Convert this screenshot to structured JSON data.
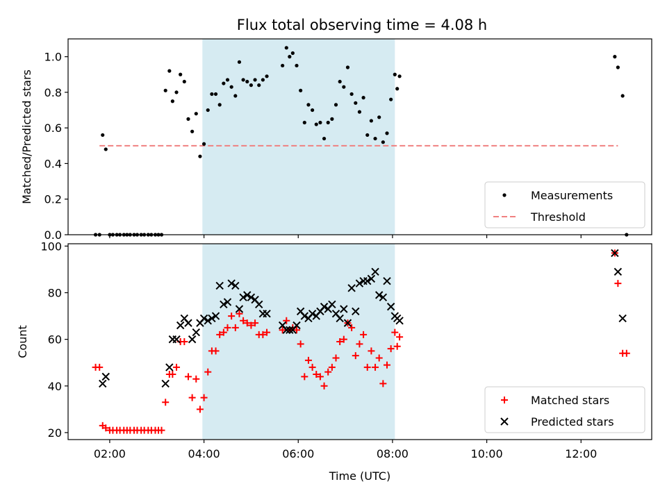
{
  "figure": {
    "title": "Flux total observing time = 4.08 h"
  },
  "colors": {
    "shade": "#add8e6",
    "measurement": "#000000",
    "threshold": "#f08080",
    "matched": "#ff0000",
    "predicted": "#000000"
  },
  "chart_data": [
    {
      "type": "scatter",
      "ylabel": "Matched/Predicted stars",
      "xlim": [
        "01:07",
        "13:30"
      ],
      "ylim": [
        0,
        1.1
      ],
      "yticks": [
        0.0,
        0.2,
        0.4,
        0.6,
        0.8,
        1.0
      ],
      "ytick_labels": [
        "0.0",
        "0.2",
        "0.4",
        "0.6",
        "0.8",
        "1.0"
      ],
      "shaded_interval": [
        "03:58",
        "08:03"
      ],
      "legend": {
        "position": "lower-right",
        "entries": [
          "Measurements",
          "Threshold"
        ]
      },
      "threshold": {
        "name": "Threshold",
        "value": 0.5,
        "x": [
          "01:47",
          "12:47"
        ],
        "style": "dashed"
      },
      "series": [
        {
          "name": "Measurements",
          "marker": "dot",
          "points": [
            [
              "01:42",
              0.0
            ],
            [
              "01:47",
              0.0
            ],
            [
              "01:51",
              0.56
            ],
            [
              "01:55",
              0.48
            ],
            [
              "02:00",
              0.0
            ],
            [
              "02:04",
              0.0
            ],
            [
              "02:09",
              0.0
            ],
            [
              "02:13",
              0.0
            ],
            [
              "02:18",
              0.0
            ],
            [
              "02:22",
              0.0
            ],
            [
              "02:26",
              0.0
            ],
            [
              "02:31",
              0.0
            ],
            [
              "02:35",
              0.0
            ],
            [
              "02:40",
              0.0
            ],
            [
              "02:44",
              0.0
            ],
            [
              "02:49",
              0.0
            ],
            [
              "02:53",
              0.0
            ],
            [
              "02:58",
              0.0
            ],
            [
              "03:02",
              0.0
            ],
            [
              "03:06",
              0.0
            ],
            [
              "03:11",
              0.81
            ],
            [
              "03:16",
              0.92
            ],
            [
              "03:20",
              0.75
            ],
            [
              "03:25",
              0.8
            ],
            [
              "03:30",
              0.9
            ],
            [
              "03:35",
              0.86
            ],
            [
              "03:40",
              0.65
            ],
            [
              "03:45",
              0.58
            ],
            [
              "03:50",
              0.68
            ],
            [
              "03:55",
              0.44
            ],
            [
              "04:00",
              0.51
            ],
            [
              "04:05",
              0.7
            ],
            [
              "04:10",
              0.79
            ],
            [
              "04:15",
              0.79
            ],
            [
              "04:20",
              0.73
            ],
            [
              "04:25",
              0.85
            ],
            [
              "04:30",
              0.87
            ],
            [
              "04:35",
              0.83
            ],
            [
              "04:40",
              0.78
            ],
            [
              "04:45",
              0.97
            ],
            [
              "04:50",
              0.87
            ],
            [
              "04:55",
              0.86
            ],
            [
              "05:00",
              0.84
            ],
            [
              "05:05",
              0.87
            ],
            [
              "05:10",
              0.84
            ],
            [
              "05:15",
              0.87
            ],
            [
              "05:20",
              0.89
            ],
            [
              "05:40",
              0.95
            ],
            [
              "05:45",
              1.05
            ],
            [
              "05:49",
              1.0
            ],
            [
              "05:53",
              1.02
            ],
            [
              "05:58",
              0.95
            ],
            [
              "06:03",
              0.81
            ],
            [
              "06:08",
              0.63
            ],
            [
              "06:13",
              0.73
            ],
            [
              "06:18",
              0.7
            ],
            [
              "06:23",
              0.62
            ],
            [
              "06:28",
              0.63
            ],
            [
              "06:33",
              0.54
            ],
            [
              "06:38",
              0.63
            ],
            [
              "06:43",
              0.65
            ],
            [
              "06:48",
              0.73
            ],
            [
              "06:53",
              0.86
            ],
            [
              "06:58",
              0.83
            ],
            [
              "07:03",
              0.94
            ],
            [
              "07:08",
              0.79
            ],
            [
              "07:13",
              0.74
            ],
            [
              "07:18",
              0.69
            ],
            [
              "07:23",
              0.77
            ],
            [
              "07:28",
              0.56
            ],
            [
              "07:33",
              0.64
            ],
            [
              "07:38",
              0.54
            ],
            [
              "07:43",
              0.66
            ],
            [
              "07:48",
              0.52
            ],
            [
              "07:53",
              0.57
            ],
            [
              "07:58",
              0.76
            ],
            [
              "08:03",
              0.9
            ],
            [
              "08:06",
              0.82
            ],
            [
              "08:09",
              0.89
            ],
            [
              "12:43",
              1.0
            ],
            [
              "12:47",
              0.94
            ],
            [
              "12:53",
              0.78
            ],
            [
              "12:58",
              0.0
            ]
          ]
        }
      ]
    },
    {
      "type": "scatter",
      "xlabel": "Time (UTC)",
      "ylabel": "Count",
      "xlim": [
        "01:07",
        "13:30"
      ],
      "ylim": [
        17,
        101
      ],
      "xticks": [
        "02:00",
        "04:00",
        "06:00",
        "08:00",
        "10:00",
        "12:00"
      ],
      "yticks": [
        20,
        40,
        60,
        80,
        100
      ],
      "ytick_labels": [
        "20",
        "40",
        "60",
        "80",
        "100"
      ],
      "shaded_interval": [
        "03:58",
        "08:03"
      ],
      "legend": {
        "position": "lower-right",
        "entries": [
          "Matched stars",
          "Predicted stars"
        ]
      },
      "series": [
        {
          "name": "Matched stars",
          "marker": "plus",
          "points": [
            [
              "01:42",
              48
            ],
            [
              "01:47",
              48
            ],
            [
              "01:51",
              23
            ],
            [
              "01:55",
              22
            ],
            [
              "02:00",
              21
            ],
            [
              "02:04",
              21
            ],
            [
              "02:09",
              21
            ],
            [
              "02:13",
              21
            ],
            [
              "02:18",
              21
            ],
            [
              "02:22",
              21
            ],
            [
              "02:26",
              21
            ],
            [
              "02:31",
              21
            ],
            [
              "02:35",
              21
            ],
            [
              "02:40",
              21
            ],
            [
              "02:44",
              21
            ],
            [
              "02:49",
              21
            ],
            [
              "02:53",
              21
            ],
            [
              "02:58",
              21
            ],
            [
              "03:02",
              21
            ],
            [
              "03:06",
              21
            ],
            [
              "03:11",
              33
            ],
            [
              "03:16",
              45
            ],
            [
              "03:20",
              45
            ],
            [
              "03:25",
              48
            ],
            [
              "03:30",
              59
            ],
            [
              "03:35",
              59
            ],
            [
              "03:40",
              44
            ],
            [
              "03:45",
              35
            ],
            [
              "03:50",
              43
            ],
            [
              "03:55",
              30
            ],
            [
              "04:00",
              35
            ],
            [
              "04:05",
              46
            ],
            [
              "04:10",
              55
            ],
            [
              "04:15",
              55
            ],
            [
              "04:20",
              62
            ],
            [
              "04:25",
              63
            ],
            [
              "04:30",
              65
            ],
            [
              "04:35",
              70
            ],
            [
              "04:40",
              65
            ],
            [
              "04:45",
              71
            ],
            [
              "04:50",
              68
            ],
            [
              "04:55",
              67
            ],
            [
              "05:00",
              66
            ],
            [
              "05:05",
              67
            ],
            [
              "05:10",
              62
            ],
            [
              "05:15",
              62
            ],
            [
              "05:20",
              63
            ],
            [
              "05:40",
              64
            ],
            [
              "05:45",
              68
            ],
            [
              "05:49",
              64
            ],
            [
              "05:53",
              65
            ],
            [
              "05:58",
              64
            ],
            [
              "06:03",
              58
            ],
            [
              "06:08",
              44
            ],
            [
              "06:13",
              51
            ],
            [
              "06:18",
              48
            ],
            [
              "06:23",
              45
            ],
            [
              "06:28",
              44
            ],
            [
              "06:33",
              40
            ],
            [
              "06:38",
              46
            ],
            [
              "06:43",
              48
            ],
            [
              "06:48",
              52
            ],
            [
              "06:53",
              59
            ],
            [
              "06:58",
              60
            ],
            [
              "07:03",
              67
            ],
            [
              "07:08",
              65
            ],
            [
              "07:13",
              53
            ],
            [
              "07:18",
              58
            ],
            [
              "07:23",
              62
            ],
            [
              "07:28",
              48
            ],
            [
              "07:33",
              55
            ],
            [
              "07:38",
              48
            ],
            [
              "07:43",
              52
            ],
            [
              "07:48",
              41
            ],
            [
              "07:53",
              49
            ],
            [
              "07:58",
              56
            ],
            [
              "08:03",
              63
            ],
            [
              "08:06",
              57
            ],
            [
              "08:09",
              61
            ],
            [
              "12:43",
              97
            ],
            [
              "12:47",
              84
            ],
            [
              "12:53",
              54
            ],
            [
              "12:58",
              54
            ]
          ]
        },
        {
          "name": "Predicted stars",
          "marker": "x",
          "points": [
            [
              "01:51",
              41
            ],
            [
              "01:55",
              44
            ],
            [
              "03:11",
              41
            ],
            [
              "03:16",
              48
            ],
            [
              "03:20",
              60
            ],
            [
              "03:25",
              60
            ],
            [
              "03:30",
              66
            ],
            [
              "03:35",
              69
            ],
            [
              "03:40",
              67
            ],
            [
              "03:45",
              60
            ],
            [
              "03:50",
              63
            ],
            [
              "03:55",
              67
            ],
            [
              "04:00",
              69
            ],
            [
              "04:05",
              68
            ],
            [
              "04:10",
              69
            ],
            [
              "04:15",
              70
            ],
            [
              "04:20",
              83
            ],
            [
              "04:25",
              75
            ],
            [
              "04:30",
              76
            ],
            [
              "04:35",
              84
            ],
            [
              "04:40",
              83
            ],
            [
              "04:45",
              73
            ],
            [
              "04:50",
              78
            ],
            [
              "04:55",
              79
            ],
            [
              "05:00",
              78
            ],
            [
              "05:05",
              77
            ],
            [
              "05:10",
              75
            ],
            [
              "05:15",
              71
            ],
            [
              "05:20",
              71
            ],
            [
              "05:40",
              66
            ],
            [
              "05:45",
              64
            ],
            [
              "05:49",
              64
            ],
            [
              "05:53",
              64
            ],
            [
              "05:58",
              66
            ],
            [
              "06:03",
              72
            ],
            [
              "06:08",
              70
            ],
            [
              "06:13",
              69
            ],
            [
              "06:18",
              71
            ],
            [
              "06:23",
              70
            ],
            [
              "06:28",
              72
            ],
            [
              "06:33",
              74
            ],
            [
              "06:38",
              73
            ],
            [
              "06:43",
              75
            ],
            [
              "06:48",
              71
            ],
            [
              "06:53",
              69
            ],
            [
              "06:58",
              73
            ],
            [
              "07:03",
              67
            ],
            [
              "07:08",
              82
            ],
            [
              "07:13",
              72
            ],
            [
              "07:18",
              84
            ],
            [
              "07:23",
              85
            ],
            [
              "07:28",
              85
            ],
            [
              "07:33",
              86
            ],
            [
              "07:38",
              89
            ],
            [
              "07:43",
              79
            ],
            [
              "07:48",
              78
            ],
            [
              "07:53",
              85
            ],
            [
              "07:58",
              74
            ],
            [
              "08:03",
              70
            ],
            [
              "08:06",
              69
            ],
            [
              "08:09",
              68
            ],
            [
              "12:43",
              97
            ],
            [
              "12:47",
              89
            ],
            [
              "12:53",
              69
            ]
          ]
        }
      ]
    }
  ]
}
